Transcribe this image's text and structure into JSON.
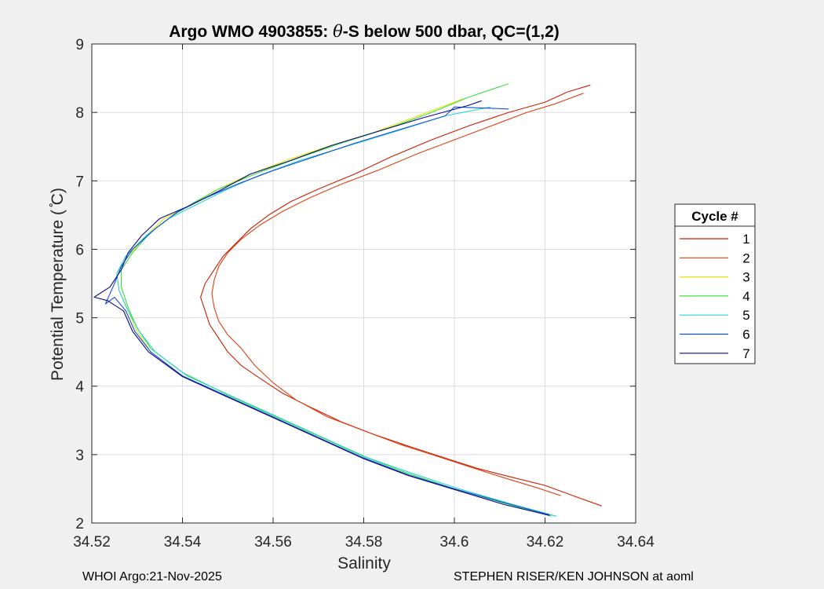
{
  "chart_data": {
    "type": "line",
    "title": "Argo WMO 4903855: θ-S below 500 dbar,  QC=(1,2)",
    "title_parts": {
      "prefix": "Argo WMO 4903855: ",
      "theta": "θ",
      "suffix": "-S below 500 dbar,  QC=(1,2)"
    },
    "xlabel": "Salinity",
    "ylabel": "Potential Temperature ( ̊C)",
    "xlim": [
      34.52,
      34.64
    ],
    "ylim": [
      2,
      9
    ],
    "xticks": [
      34.52,
      34.54,
      34.56,
      34.58,
      34.6,
      34.62,
      34.64
    ],
    "xtick_labels": [
      "34.52",
      "34.54",
      "34.56",
      "34.58",
      "34.6",
      "34.62",
      "34.64"
    ],
    "yticks": [
      2,
      3,
      4,
      5,
      6,
      7,
      8,
      9
    ],
    "ytick_labels": [
      "2",
      "3",
      "4",
      "5",
      "6",
      "7",
      "8",
      "9"
    ],
    "grid": true,
    "legend": {
      "title": "Cycle #",
      "placement": "right"
    },
    "series": [
      {
        "name": "1",
        "color": "#c81e00",
        "points": [
          [
            34.6325,
            2.25
          ],
          [
            34.627,
            2.38
          ],
          [
            34.62,
            2.55
          ],
          [
            34.612,
            2.68
          ],
          [
            34.605,
            2.8
          ],
          [
            34.597,
            2.97
          ],
          [
            34.59,
            3.12
          ],
          [
            34.582,
            3.3
          ],
          [
            34.575,
            3.48
          ],
          [
            34.568,
            3.7
          ],
          [
            34.562,
            3.9
          ],
          [
            34.557,
            4.12
          ],
          [
            34.553,
            4.3
          ],
          [
            34.55,
            4.5
          ],
          [
            34.548,
            4.7
          ],
          [
            34.546,
            4.9
          ],
          [
            34.545,
            5.1
          ],
          [
            34.544,
            5.3
          ],
          [
            34.545,
            5.5
          ],
          [
            34.547,
            5.7
          ],
          [
            34.549,
            5.9
          ],
          [
            34.552,
            6.1
          ],
          [
            34.555,
            6.3
          ],
          [
            34.559,
            6.5
          ],
          [
            34.564,
            6.7
          ],
          [
            34.57,
            6.88
          ],
          [
            34.578,
            7.1
          ],
          [
            34.586,
            7.35
          ],
          [
            34.595,
            7.6
          ],
          [
            34.603,
            7.8
          ],
          [
            34.612,
            8.0
          ],
          [
            34.62,
            8.15
          ],
          [
            34.625,
            8.3
          ],
          [
            34.63,
            8.4
          ]
        ]
      },
      {
        "name": "2",
        "color": "#e04010",
        "points": [
          [
            34.6235,
            2.4
          ],
          [
            34.618,
            2.52
          ],
          [
            34.61,
            2.68
          ],
          [
            34.603,
            2.83
          ],
          [
            34.596,
            2.98
          ],
          [
            34.588,
            3.15
          ],
          [
            34.58,
            3.35
          ],
          [
            34.572,
            3.55
          ],
          [
            34.565,
            3.8
          ],
          [
            34.56,
            4.05
          ],
          [
            34.556,
            4.3
          ],
          [
            34.553,
            4.55
          ],
          [
            34.55,
            4.75
          ],
          [
            34.548,
            4.95
          ],
          [
            34.547,
            5.15
          ],
          [
            34.5465,
            5.35
          ],
          [
            34.547,
            5.55
          ],
          [
            34.548,
            5.75
          ],
          [
            34.55,
            5.95
          ],
          [
            34.553,
            6.15
          ],
          [
            34.557,
            6.35
          ],
          [
            34.562,
            6.55
          ],
          [
            34.568,
            6.75
          ],
          [
            34.575,
            6.95
          ],
          [
            34.583,
            7.15
          ],
          [
            34.592,
            7.4
          ],
          [
            34.6,
            7.6
          ],
          [
            34.608,
            7.8
          ],
          [
            34.616,
            8.0
          ],
          [
            34.622,
            8.12
          ],
          [
            34.6285,
            8.28
          ]
        ]
      },
      {
        "name": "3",
        "color": "#e6e600",
        "points": [
          [
            34.6215,
            2.12
          ],
          [
            34.612,
            2.28
          ],
          [
            34.6,
            2.5
          ],
          [
            34.59,
            2.7
          ],
          [
            34.58,
            2.95
          ],
          [
            34.57,
            3.25
          ],
          [
            34.56,
            3.55
          ],
          [
            34.55,
            3.85
          ],
          [
            34.54,
            4.15
          ],
          [
            34.533,
            4.5
          ],
          [
            34.53,
            4.8
          ],
          [
            34.528,
            5.1
          ],
          [
            34.526,
            5.4
          ],
          [
            34.5255,
            5.65
          ],
          [
            34.528,
            5.9
          ],
          [
            34.532,
            6.2
          ],
          [
            34.536,
            6.45
          ],
          [
            34.542,
            6.65
          ],
          [
            34.547,
            6.85
          ],
          [
            34.555,
            7.1
          ],
          [
            34.563,
            7.3
          ],
          [
            34.572,
            7.5
          ],
          [
            34.582,
            7.7
          ],
          [
            34.592,
            7.95
          ],
          [
            34.602,
            8.2
          ]
        ]
      },
      {
        "name": "4",
        "color": "#40dc40",
        "points": [
          [
            34.6215,
            2.1
          ],
          [
            34.612,
            2.27
          ],
          [
            34.6,
            2.5
          ],
          [
            34.59,
            2.72
          ],
          [
            34.58,
            2.97
          ],
          [
            34.57,
            3.27
          ],
          [
            34.56,
            3.57
          ],
          [
            34.55,
            3.87
          ],
          [
            34.54,
            4.2
          ],
          [
            34.533,
            4.55
          ],
          [
            34.53,
            4.85
          ],
          [
            34.528,
            5.15
          ],
          [
            34.5265,
            5.45
          ],
          [
            34.5265,
            5.7
          ],
          [
            34.529,
            5.95
          ],
          [
            34.533,
            6.25
          ],
          [
            34.538,
            6.5
          ],
          [
            34.543,
            6.7
          ],
          [
            34.548,
            6.88
          ],
          [
            34.556,
            7.1
          ],
          [
            34.565,
            7.32
          ],
          [
            34.575,
            7.55
          ],
          [
            34.586,
            7.78
          ],
          [
            34.595,
            8.0
          ],
          [
            34.603,
            8.22
          ],
          [
            34.612,
            8.42
          ]
        ]
      },
      {
        "name": "5",
        "color": "#28d2d2",
        "points": [
          [
            34.6225,
            2.1
          ],
          [
            34.613,
            2.27
          ],
          [
            34.601,
            2.5
          ],
          [
            34.591,
            2.72
          ],
          [
            34.581,
            2.95
          ],
          [
            34.571,
            3.25
          ],
          [
            34.561,
            3.55
          ],
          [
            34.551,
            3.85
          ],
          [
            34.541,
            4.15
          ],
          [
            34.534,
            4.5
          ],
          [
            34.5305,
            4.8
          ],
          [
            34.528,
            5.1
          ],
          [
            34.526,
            5.4
          ],
          [
            34.5255,
            5.65
          ],
          [
            34.5275,
            5.9
          ],
          [
            34.532,
            6.2
          ],
          [
            34.537,
            6.45
          ],
          [
            34.543,
            6.65
          ],
          [
            34.549,
            6.85
          ],
          [
            34.557,
            7.08
          ],
          [
            34.566,
            7.3
          ],
          [
            34.576,
            7.5
          ],
          [
            34.587,
            7.72
          ],
          [
            34.598,
            7.95
          ],
          [
            34.608,
            8.08
          ]
        ]
      },
      {
        "name": "6",
        "color": "#1450dc",
        "points": [
          [
            34.621,
            2.12
          ],
          [
            34.612,
            2.28
          ],
          [
            34.6,
            2.5
          ],
          [
            34.59,
            2.7
          ],
          [
            34.58,
            2.95
          ],
          [
            34.57,
            3.25
          ],
          [
            34.56,
            3.55
          ],
          [
            34.55,
            3.85
          ],
          [
            34.54,
            4.15
          ],
          [
            34.533,
            4.5
          ],
          [
            34.5295,
            4.8
          ],
          [
            34.5275,
            5.1
          ],
          [
            34.525,
            5.3
          ],
          [
            34.523,
            5.2
          ],
          [
            34.525,
            5.5
          ],
          [
            34.5265,
            5.75
          ],
          [
            34.529,
            6.0
          ],
          [
            34.534,
            6.3
          ],
          [
            34.539,
            6.55
          ],
          [
            34.545,
            6.75
          ],
          [
            34.552,
            6.95
          ],
          [
            34.56,
            7.15
          ],
          [
            34.569,
            7.35
          ],
          [
            34.578,
            7.55
          ],
          [
            34.588,
            7.75
          ],
          [
            34.598,
            7.95
          ],
          [
            34.6,
            8.08
          ],
          [
            34.612,
            8.05
          ]
        ]
      },
      {
        "name": "7",
        "color": "#0a0a8c",
        "points": [
          [
            34.621,
            2.11
          ],
          [
            34.611,
            2.27
          ],
          [
            34.6,
            2.49
          ],
          [
            34.59,
            2.69
          ],
          [
            34.58,
            2.94
          ],
          [
            34.57,
            3.24
          ],
          [
            34.56,
            3.54
          ],
          [
            34.55,
            3.84
          ],
          [
            34.54,
            4.14
          ],
          [
            34.5325,
            4.5
          ],
          [
            34.529,
            4.8
          ],
          [
            34.527,
            5.1
          ],
          [
            34.5235,
            5.25
          ],
          [
            34.5205,
            5.3
          ],
          [
            34.524,
            5.45
          ],
          [
            34.5265,
            5.7
          ],
          [
            34.528,
            5.95
          ],
          [
            34.531,
            6.2
          ],
          [
            34.535,
            6.45
          ],
          [
            34.541,
            6.62
          ],
          [
            34.548,
            6.85
          ],
          [
            34.555,
            7.1
          ],
          [
            34.564,
            7.3
          ],
          [
            34.573,
            7.52
          ],
          [
            34.583,
            7.72
          ],
          [
            34.593,
            7.92
          ],
          [
            34.603,
            8.1
          ],
          [
            34.606,
            8.17
          ]
        ]
      }
    ]
  },
  "footer": {
    "left": "WHOI Argo:21-Nov-2025",
    "right": "STEPHEN RISER/KEN JOHNSON at aoml"
  }
}
